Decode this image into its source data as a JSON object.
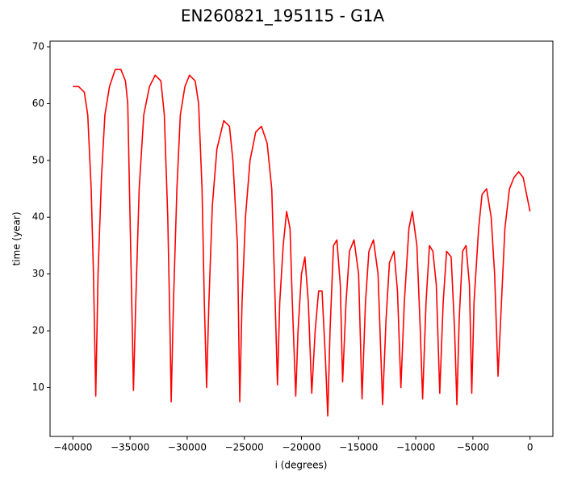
{
  "chart_data": {
    "type": "line",
    "title": "EN260821_195115 - G1A",
    "x_label": "i (degrees)",
    "y_label": "time (year)",
    "color": "#ff0000",
    "x": [
      -40000,
      -39500,
      -39000,
      -38700,
      -38400,
      -38200,
      -38000,
      -37800,
      -37500,
      -37200,
      -36800,
      -36300,
      -35800,
      -35400,
      -35200,
      -35000,
      -34800,
      -34700,
      -34500,
      -34200,
      -33800,
      -33300,
      -32800,
      -32300,
      -32000,
      -31700,
      -31500,
      -31400,
      -31200,
      -30900,
      -30600,
      -30200,
      -29800,
      -29300,
      -29000,
      -28700,
      -28500,
      -28300,
      -28100,
      -27800,
      -27400,
      -26800,
      -26300,
      -26000,
      -25600,
      -25400,
      -25200,
      -24900,
      -24500,
      -24000,
      -23500,
      -23000,
      -22600,
      -22300,
      -22100,
      -21900,
      -21600,
      -21300,
      -21000,
      -20800,
      -20500,
      -20300,
      -20000,
      -19700,
      -19400,
      -19100,
      -18800,
      -18500,
      -18200,
      -17900,
      -17700,
      -17500,
      -17200,
      -16900,
      -16600,
      -16400,
      -16100,
      -15800,
      -15400,
      -15000,
      -14700,
      -14400,
      -14100,
      -13700,
      -13300,
      -12900,
      -12600,
      -12300,
      -11900,
      -11600,
      -11300,
      -11000,
      -10600,
      -10300,
      -9900,
      -9600,
      -9400,
      -9100,
      -8800,
      -8500,
      -8200,
      -7900,
      -7600,
      -7300,
      -6900,
      -6600,
      -6400,
      -6200,
      -5900,
      -5600,
      -5300,
      -5100,
      -4900,
      -4500,
      -4200,
      -3800,
      -3400,
      -3100,
      -2800,
      -2500,
      -2200,
      -1800,
      -1400,
      -1000,
      -600,
      -300,
      0
    ],
    "values": [
      63,
      63,
      62,
      58,
      45,
      30,
      8.5,
      30,
      47,
      58,
      63,
      66,
      66,
      64,
      60,
      40,
      20,
      9.5,
      25,
      45,
      58,
      63,
      65,
      64,
      58,
      40,
      20,
      7.5,
      25,
      45,
      58,
      63,
      65,
      64,
      60,
      45,
      25,
      10,
      25,
      42,
      52,
      57,
      56,
      50,
      35,
      7.5,
      25,
      40,
      50,
      55,
      56,
      53,
      45,
      25,
      10.5,
      25,
      35,
      41,
      38,
      25,
      8.5,
      20,
      30,
      33,
      25,
      9,
      20,
      27,
      27,
      15,
      5,
      20,
      35,
      36,
      28,
      11,
      25,
      34,
      36,
      30,
      8,
      25,
      34,
      36,
      30,
      7,
      22,
      32,
      34,
      27,
      10,
      25,
      38,
      41,
      35,
      20,
      8,
      25,
      35,
      34,
      28,
      9,
      25,
      34,
      33,
      20,
      7,
      22,
      34,
      35,
      28,
      9,
      25,
      38,
      44,
      45,
      40,
      30,
      12,
      25,
      38,
      45,
      47,
      48,
      47,
      44,
      41
    ],
    "xlim": [
      -42000,
      2000
    ],
    "ylim": [
      1.4,
      71.0
    ],
    "xticks": [
      {
        "value": -40000,
        "label": "−40000"
      },
      {
        "value": -35000,
        "label": "−35000"
      },
      {
        "value": -30000,
        "label": "−30000"
      },
      {
        "value": -25000,
        "label": "−25000"
      },
      {
        "value": -20000,
        "label": "−20000"
      },
      {
        "value": -15000,
        "label": "−15000"
      },
      {
        "value": -10000,
        "label": "−10000"
      },
      {
        "value": -5000,
        "label": "−5000"
      },
      0
    ],
    "yticks": [
      10,
      20,
      30,
      40,
      50,
      60,
      70
    ]
  }
}
